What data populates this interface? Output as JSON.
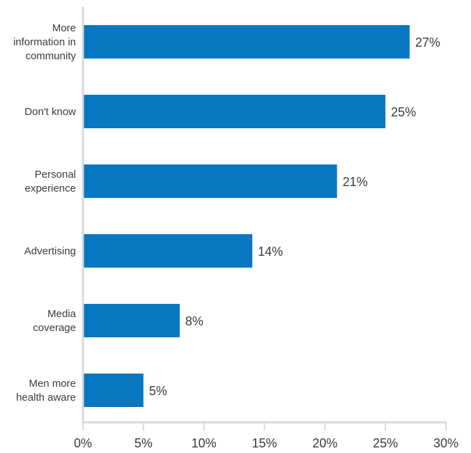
{
  "chart_data": {
    "type": "bar",
    "orientation": "horizontal",
    "categories": [
      [
        "More",
        "information in",
        "community"
      ],
      [
        "Don't know"
      ],
      [
        "Personal",
        "experience"
      ],
      [
        "Advertising"
      ],
      [
        "Media",
        "coverage"
      ],
      [
        "Men more",
        "health aware"
      ]
    ],
    "values": [
      27,
      25,
      21,
      14,
      8,
      5
    ],
    "value_labels": [
      "27%",
      "25%",
      "21%",
      "14%",
      "8%",
      "5%"
    ],
    "xlim": [
      0,
      30
    ],
    "x_ticks": [
      0,
      5,
      10,
      15,
      20,
      25,
      30
    ],
    "x_tick_labels": [
      "0%",
      "5%",
      "10%",
      "15%",
      "20%",
      "25%",
      "30%"
    ],
    "title": "",
    "xlabel": "",
    "ylabel": "",
    "grid": false,
    "colors": {
      "bar": "#0a77c2",
      "axis": "#d9d9d9",
      "text": "#3a3a3a"
    }
  }
}
